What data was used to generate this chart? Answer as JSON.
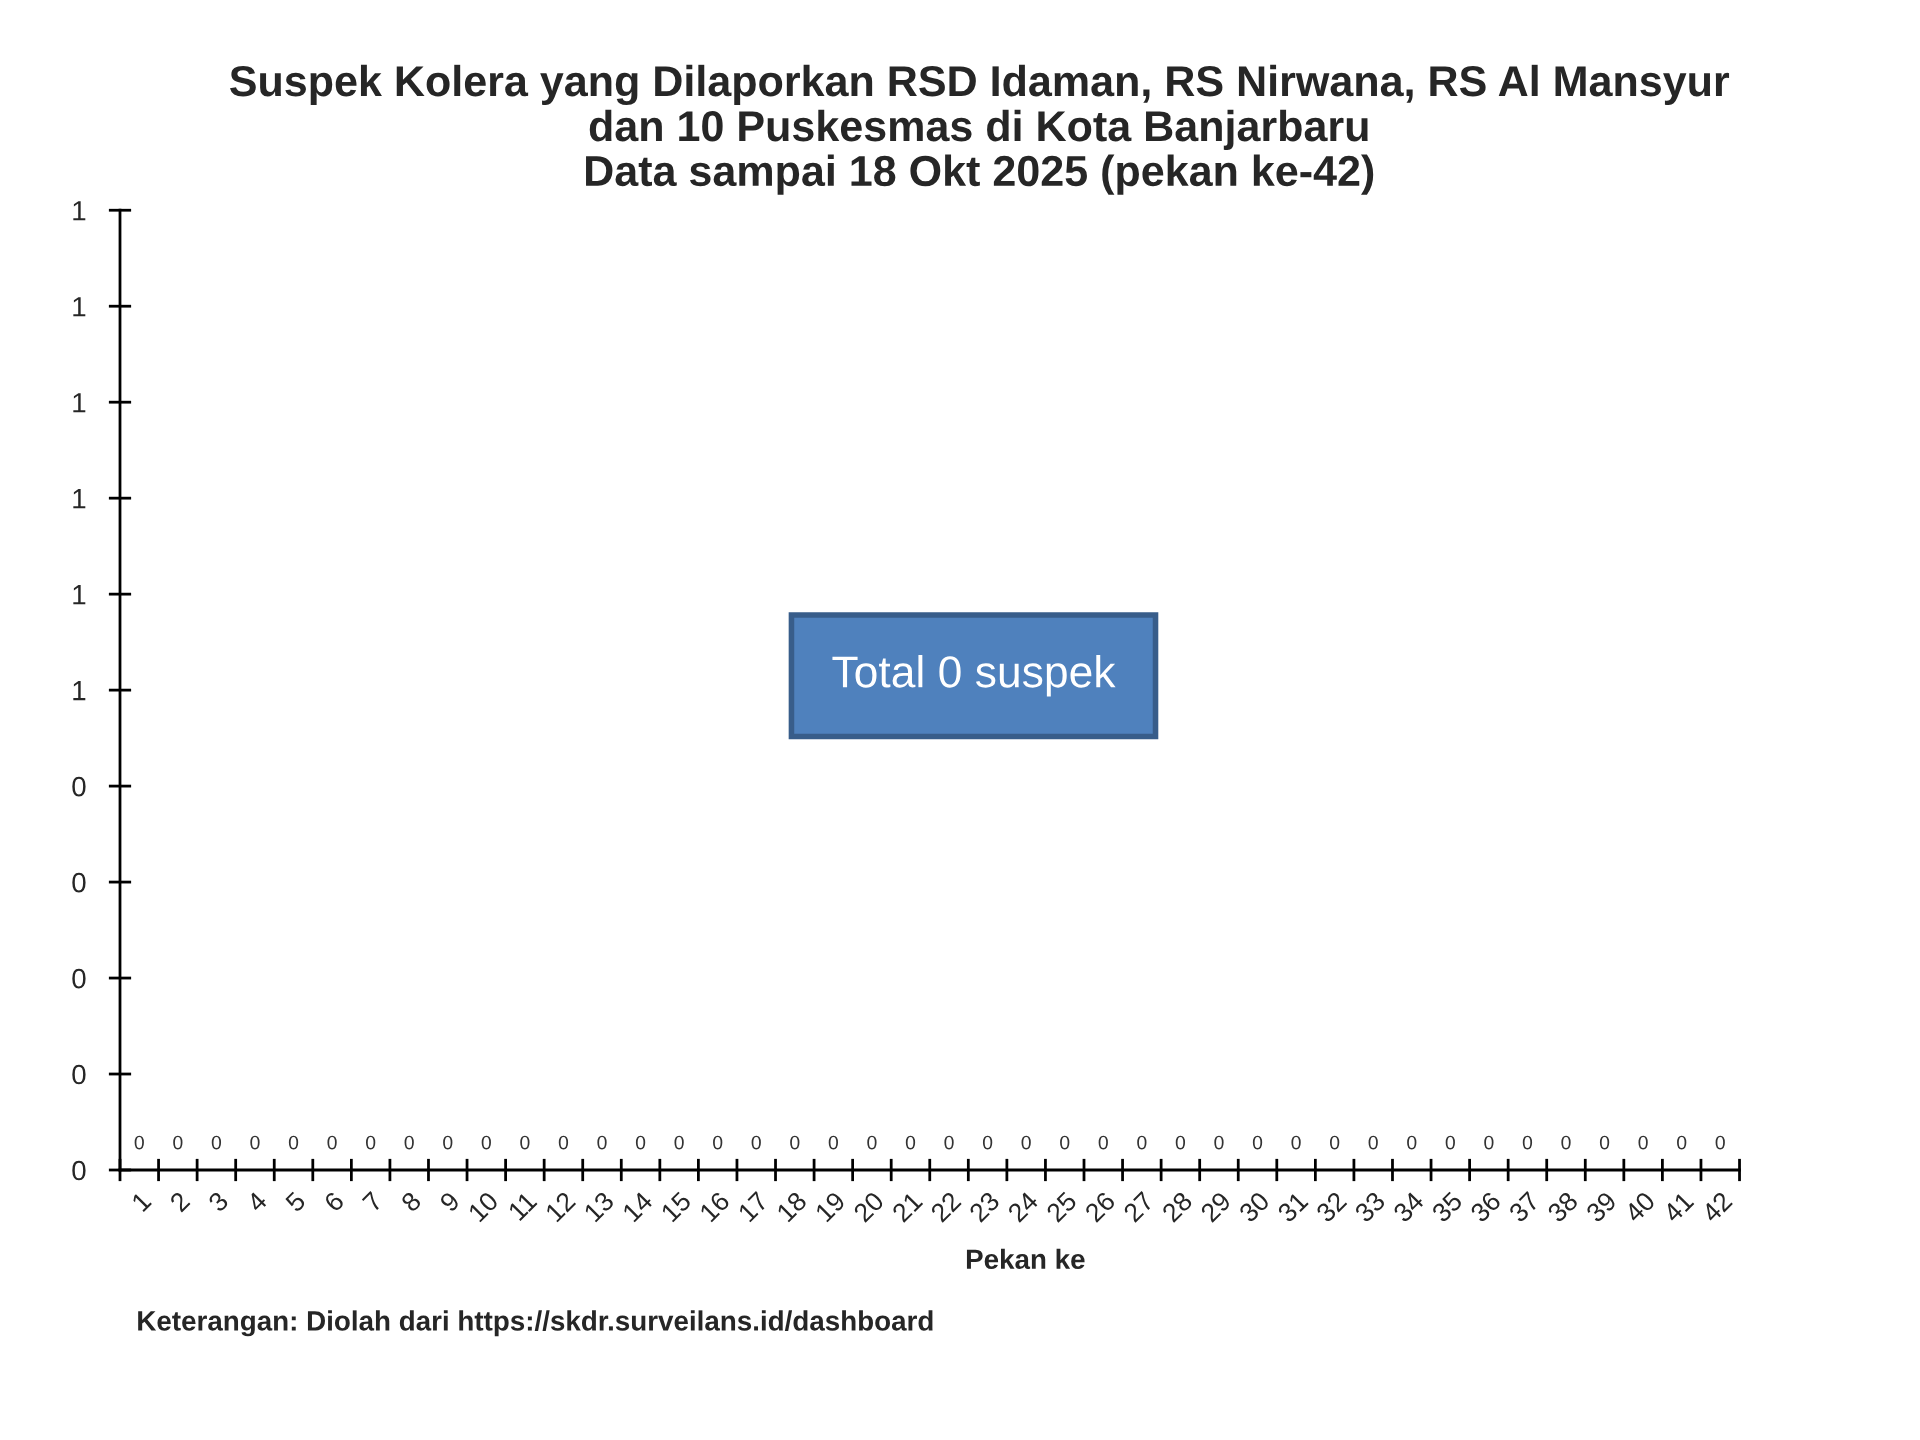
{
  "chart_data": {
    "type": "bar",
    "title": "Suspek Kolera yang Dilaporkan RSD Idaman, RS Nirwana, RS Al Mansyur\ndan 10 Puskesmas di Kota Banjarbaru\nData sampai 18 Okt 2025 (pekan ke-42)",
    "xlabel": "Pekan ke",
    "categories": [
      "1",
      "2",
      "3",
      "4",
      "5",
      "6",
      "7",
      "8",
      "9",
      "10",
      "11",
      "12",
      "13",
      "14",
      "15",
      "16",
      "17",
      "18",
      "19",
      "20",
      "21",
      "22",
      "23",
      "24",
      "25",
      "26",
      "27",
      "28",
      "29",
      "30",
      "31",
      "32",
      "33",
      "34",
      "35",
      "36",
      "37",
      "38",
      "39",
      "40",
      "41",
      "42"
    ],
    "values": [
      0,
      0,
      0,
      0,
      0,
      0,
      0,
      0,
      0,
      0,
      0,
      0,
      0,
      0,
      0,
      0,
      0,
      0,
      0,
      0,
      0,
      0,
      0,
      0,
      0,
      0,
      0,
      0,
      0,
      0,
      0,
      0,
      0,
      0,
      0,
      0,
      0,
      0,
      0,
      0,
      0,
      0
    ],
    "ylim": [
      0,
      1
    ],
    "yticks": [
      0,
      {
        "value": 0.1,
        "label": "0"
      },
      {
        "value": 0.2,
        "label": "0"
      },
      {
        "value": 0.3,
        "label": "0"
      },
      {
        "value": 0.4,
        "label": "0"
      },
      {
        "value": 0.5,
        "label": "1"
      },
      {
        "value": 0.6,
        "label": "1"
      },
      {
        "value": 0.7,
        "label": "1"
      },
      {
        "value": 0.8,
        "label": "1"
      },
      {
        "value": 0.9,
        "label": "1"
      },
      1
    ],
    "data_labels": true,
    "annotations": [
      "Total 0 suspek",
      "Keterangan: Diolah dari https://skdr.surveilans.id/dashboard"
    ]
  }
}
